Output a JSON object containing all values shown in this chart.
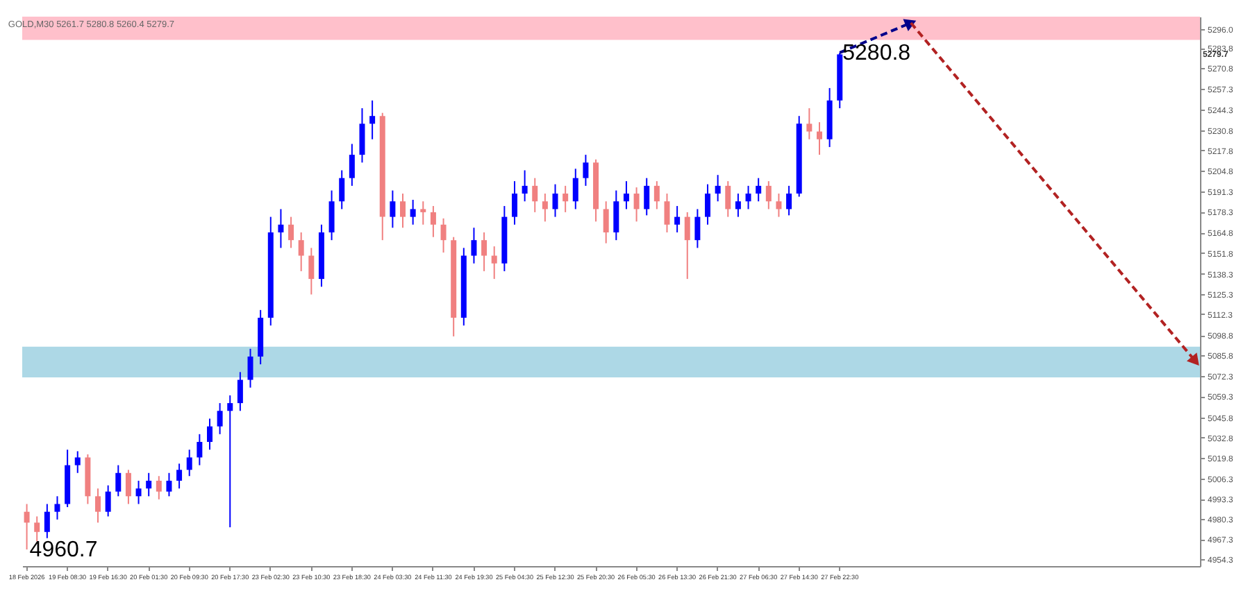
{
  "chart_data": {
    "type": "candlestick",
    "title": "GOLD,M30  5261.7 5280.8 5260.4 5279.7",
    "categories": [
      "18 Feb 2026",
      null,
      null,
      null,
      "19 Feb 08:30",
      null,
      null,
      null,
      "19 Feb 16:30",
      null,
      null,
      null,
      "20 Feb 01:30",
      null,
      null,
      null,
      "20 Feb 09:30",
      null,
      null,
      null,
      "20 Feb 17:30",
      null,
      null,
      null,
      "23 Feb 02:30",
      null,
      null,
      null,
      "23 Feb 10:30",
      null,
      null,
      null,
      "23 Feb 18:30",
      null,
      null,
      null,
      "24 Feb 03:30",
      null,
      null,
      null,
      "24 Feb 11:30",
      null,
      null,
      null,
      "24 Feb 19:30",
      null,
      null,
      null,
      "25 Feb 04:30",
      null,
      null,
      null,
      "25 Feb 12:30",
      null,
      null,
      null,
      "25 Feb 20:30",
      null,
      null,
      null,
      "26 Feb 05:30",
      null,
      null,
      null,
      "26 Feb 13:30",
      null,
      null,
      null,
      "26 Feb 21:30",
      null,
      null,
      null,
      "27 Feb 06:30",
      null,
      null,
      null,
      "27 Feb 14:30",
      null,
      null,
      null,
      "27 Feb 22:30",
      null,
      null,
      null,
      null,
      null,
      null,
      null,
      null,
      null,
      null,
      null,
      null,
      null,
      null,
      null,
      null,
      null,
      null,
      null,
      null,
      null,
      null,
      null,
      null,
      null,
      null,
      null,
      null,
      null,
      null,
      null,
      null,
      null,
      null,
      null
    ],
    "ohlc": [
      [
        4985,
        4990,
        4960.7,
        4978
      ],
      [
        4978,
        4982,
        4966,
        4972
      ],
      [
        4972,
        4990,
        4968,
        4985
      ],
      [
        4985,
        4995,
        4980,
        4990
      ],
      [
        4990,
        5025,
        4988,
        5015
      ],
      [
        5015,
        5024,
        5010,
        5020
      ],
      [
        5020,
        5022,
        4990,
        4995
      ],
      [
        4995,
        5000,
        4978,
        4985
      ],
      [
        4985,
        5002,
        4982,
        4998
      ],
      [
        4998,
        5015,
        4995,
        5010
      ],
      [
        5010,
        5012,
        4990,
        4995
      ],
      [
        4995,
        5005,
        4990,
        5000
      ],
      [
        5000,
        5010,
        4995,
        5005
      ],
      [
        5005,
        5008,
        4993,
        4998
      ],
      [
        4998,
        5010,
        4995,
        5005
      ],
      [
        5005,
        5016,
        5000,
        5012
      ],
      [
        5012,
        5025,
        5008,
        5020
      ],
      [
        5020,
        5035,
        5015,
        5030
      ],
      [
        5030,
        5045,
        5025,
        5040
      ],
      [
        5040,
        5055,
        5035,
        5050
      ],
      [
        5050,
        5060,
        4975,
        5055
      ],
      [
        5055,
        5075,
        5050,
        5070
      ],
      [
        5070,
        5090,
        5065,
        5085
      ],
      [
        5085,
        5115,
        5080,
        5110
      ],
      [
        5110,
        5175,
        5105,
        5165
      ],
      [
        5165,
        5180,
        5155,
        5170
      ],
      [
        5170,
        5175,
        5155,
        5160
      ],
      [
        5160,
        5165,
        5140,
        5150
      ],
      [
        5150,
        5155,
        5125,
        5135
      ],
      [
        5135,
        5170,
        5130,
        5165
      ],
      [
        5165,
        5192,
        5160,
        5185
      ],
      [
        5185,
        5205,
        5180,
        5200
      ],
      [
        5200,
        5222,
        5195,
        5215
      ],
      [
        5215,
        5245,
        5210,
        5235
      ],
      [
        5235,
        5250,
        5225,
        5240
      ],
      [
        5240,
        5242,
        5160,
        5175
      ],
      [
        5175,
        5192,
        5168,
        5185
      ],
      [
        5185,
        5190,
        5168,
        5175
      ],
      [
        5175,
        5186,
        5170,
        5180
      ],
      [
        5180,
        5185,
        5170,
        5178
      ],
      [
        5178,
        5182,
        5162,
        5170
      ],
      [
        5170,
        5174,
        5152,
        5160
      ],
      [
        5160,
        5162,
        5098,
        5110
      ],
      [
        5110,
        5155,
        5105,
        5150
      ],
      [
        5150,
        5168,
        5145,
        5160
      ],
      [
        5160,
        5165,
        5140,
        5150
      ],
      [
        5150,
        5156,
        5135,
        5145
      ],
      [
        5145,
        5182,
        5140,
        5175
      ],
      [
        5175,
        5198,
        5170,
        5190
      ],
      [
        5190,
        5205,
        5185,
        5195
      ],
      [
        5195,
        5200,
        5178,
        5185
      ],
      [
        5185,
        5190,
        5172,
        5180
      ],
      [
        5180,
        5196,
        5175,
        5190
      ],
      [
        5190,
        5195,
        5178,
        5185
      ],
      [
        5185,
        5206,
        5180,
        5200
      ],
      [
        5200,
        5215,
        5195,
        5210
      ],
      [
        5210,
        5212,
        5172,
        5180
      ],
      [
        5180,
        5185,
        5158,
        5165
      ],
      [
        5165,
        5192,
        5160,
        5185
      ],
      [
        5185,
        5198,
        5180,
        5190
      ],
      [
        5190,
        5194,
        5172,
        5180
      ],
      [
        5180,
        5200,
        5176,
        5195
      ],
      [
        5195,
        5198,
        5180,
        5185
      ],
      [
        5185,
        5190,
        5165,
        5170
      ],
      [
        5170,
        5182,
        5165,
        5175
      ],
      [
        5175,
        5178,
        5135,
        5160
      ],
      [
        5160,
        5180,
        5155,
        5175
      ],
      [
        5175,
        5196,
        5170,
        5190
      ],
      [
        5190,
        5202,
        5185,
        5195
      ],
      [
        5195,
        5198,
        5175,
        5180
      ],
      [
        5180,
        5190,
        5175,
        5185
      ],
      [
        5185,
        5195,
        5180,
        5190
      ],
      [
        5190,
        5200,
        5185,
        5195
      ],
      [
        5195,
        5198,
        5180,
        5185
      ],
      [
        5185,
        5190,
        5175,
        5180
      ],
      [
        5180,
        5195,
        5176,
        5190
      ],
      [
        5190,
        5240,
        5188,
        5235
      ],
      [
        5235,
        5245,
        5225,
        5230
      ],
      [
        5230,
        5236,
        5215,
        5225
      ],
      [
        5225,
        5258,
        5220,
        5250
      ],
      [
        5250,
        5280.8,
        5245,
        5279.7
      ],
      null,
      null,
      null,
      null,
      null,
      null,
      null,
      null,
      null,
      null,
      null,
      null,
      null,
      null,
      null,
      null,
      null,
      null,
      null,
      null,
      null,
      null,
      null,
      null,
      null,
      null,
      null,
      null,
      null,
      null,
      null,
      null,
      null,
      null,
      null
    ],
    "colors": [
      "#f08080",
      "#f08080",
      "#0000ff",
      "#0000ff",
      "#0000ff",
      "#0000ff",
      "#f08080",
      "#f08080",
      "#0000ff",
      "#0000ff",
      "#f08080",
      "#0000ff",
      "#0000ff",
      "#f08080",
      "#0000ff",
      "#0000ff",
      "#0000ff",
      "#0000ff",
      "#0000ff",
      "#0000ff",
      "#0000ff",
      "#0000ff",
      "#0000ff",
      "#0000ff",
      "#0000ff",
      "#0000ff",
      "#f08080",
      "#f08080",
      "#f08080",
      "#0000ff",
      "#0000ff",
      "#0000ff",
      "#0000ff",
      "#0000ff",
      "#0000ff",
      "#f08080",
      "#0000ff",
      "#f08080",
      "#0000ff",
      "#f08080",
      "#f08080",
      "#f08080",
      "#f08080",
      "#0000ff",
      "#0000ff",
      "#f08080",
      "#f08080",
      "#0000ff",
      "#0000ff",
      "#0000ff",
      "#f08080",
      "#f08080",
      "#0000ff",
      "#f08080",
      "#0000ff",
      "#0000ff",
      "#f08080",
      "#f08080",
      "#0000ff",
      "#0000ff",
      "#f08080",
      "#0000ff",
      "#f08080",
      "#f08080",
      "#0000ff",
      "#f08080",
      "#0000ff",
      "#0000ff",
      "#0000ff",
      "#f08080",
      "#0000ff",
      "#0000ff",
      "#0000ff",
      "#f08080",
      "#f08080",
      "#0000ff",
      "#0000ff",
      "#f08080",
      "#f08080",
      "#0000ff",
      "#0000ff",
      null,
      null,
      null,
      null,
      null,
      null,
      null,
      null,
      null,
      null,
      null,
      null,
      null,
      null,
      null,
      null,
      null,
      null,
      null,
      null,
      null,
      null,
      null,
      null,
      null,
      null,
      null,
      null,
      null,
      null,
      null,
      null,
      null,
      null,
      null
    ],
    "series": [
      {
        "type": "line",
        "color": "#00008b",
        "line_style": "dashed",
        "values": [
          null,
          null,
          null,
          null,
          null,
          null,
          null,
          null,
          null,
          null,
          null,
          null,
          null,
          null,
          null,
          null,
          null,
          null,
          null,
          null,
          null,
          null,
          null,
          null,
          null,
          null,
          null,
          null,
          null,
          null,
          null,
          null,
          null,
          null,
          null,
          null,
          null,
          null,
          null,
          null,
          null,
          null,
          null,
          null,
          null,
          null,
          null,
          null,
          null,
          null,
          null,
          null,
          null,
          null,
          null,
          null,
          null,
          null,
          null,
          null,
          null,
          null,
          null,
          null,
          null,
          null,
          null,
          null,
          null,
          null,
          null,
          null,
          null,
          null,
          null,
          null,
          null,
          null,
          null,
          null,
          5280.8,
          null,
          null,
          null,
          null,
          null,
          null,
          5300,
          null,
          null,
          null,
          null,
          null,
          null,
          null,
          null,
          null,
          null,
          null,
          null,
          null,
          null,
          null,
          null,
          null,
          null,
          null,
          null,
          null,
          null,
          null,
          null,
          null,
          null,
          null,
          null
        ]
      },
      {
        "type": "line",
        "color": "#b22222",
        "line_style": "dashed",
        "values": [
          null,
          null,
          null,
          null,
          null,
          null,
          null,
          null,
          null,
          null,
          null,
          null,
          null,
          null,
          null,
          null,
          null,
          null,
          null,
          null,
          null,
          null,
          null,
          null,
          null,
          null,
          null,
          null,
          null,
          null,
          null,
          null,
          null,
          null,
          null,
          null,
          null,
          null,
          null,
          null,
          null,
          null,
          null,
          null,
          null,
          null,
          null,
          null,
          null,
          null,
          null,
          null,
          null,
          null,
          null,
          null,
          null,
          null,
          null,
          null,
          null,
          null,
          null,
          null,
          null,
          null,
          null,
          null,
          null,
          null,
          null,
          null,
          null,
          null,
          null,
          null,
          null,
          null,
          null,
          null,
          null,
          null,
          null,
          null,
          null,
          null,
          null,
          5300,
          null,
          null,
          null,
          null,
          null,
          null,
          null,
          null,
          null,
          null,
          null,
          null,
          null,
          null,
          null,
          null,
          null,
          null,
          null,
          null,
          null,
          null,
          null,
          null,
          null,
          null,
          null,
          5082
        ]
      }
    ],
    "bands": [
      {
        "axis": "y",
        "from": 5289,
        "to": 5304,
        "color": "#ffc0cb"
      },
      {
        "axis": "y",
        "from": 5071.6,
        "to": 5091.4,
        "color": "#add8e6"
      }
    ],
    "annotations": [
      {
        "text": "4960.7",
        "x": "18 Feb 2026",
        "y": 4960.7
      },
      {
        "text": "5280.8",
        "x": "27 Feb 22:30",
        "y": 5280.8
      },
      "5279.7"
    ],
    "ylim": [
      4950,
      5304
    ],
    "yticks": [
      4954.3,
      4967.3,
      4980.3,
      4993.3,
      5006.3,
      5019.8,
      5032.8,
      5045.8,
      5059.3,
      5072.3,
      5085.8,
      5098.8,
      5112.3,
      5125.3,
      5138.3,
      5151.8,
      5164.8,
      5178.3,
      5191.3,
      5204.8,
      5217.8,
      5230.8,
      5244.3,
      5257.3,
      5270.8,
      5283.8,
      {
        "value": 5296,
        "label": "5296.0"
      }
    ],
    "grid": false
  }
}
